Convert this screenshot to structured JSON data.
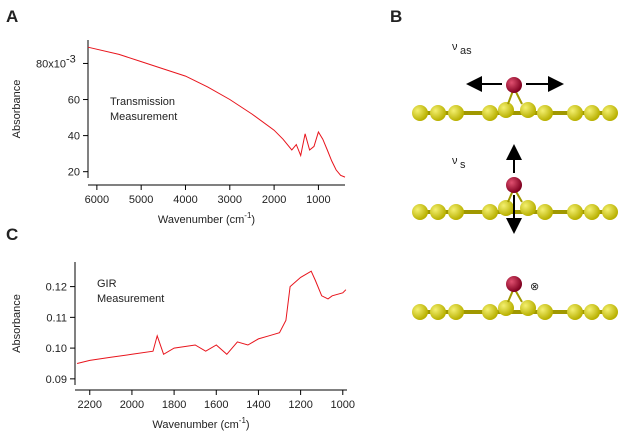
{
  "panel_labels": [
    "A",
    "B",
    "C"
  ],
  "diagram": {
    "modes": [
      {
        "symbol": "ν",
        "subscript": "as"
      },
      {
        "symbol": "ν",
        "subscript": "s"
      },
      {
        "symbol": "⊗"
      }
    ]
  },
  "chart_data": [
    {
      "type": "line",
      "ylabel": "Absorbance",
      "xlabel": {
        "text": "Wavenumber (cm",
        "sup": "-1",
        "end": ")"
      },
      "annotation": [
        "Transmission",
        "Measurement"
      ],
      "color": "#e8141c",
      "xlim": [
        6200,
        400
      ],
      "xticks": [
        6000,
        5000,
        4000,
        3000,
        2000,
        1000
      ],
      "ylim": [
        16.5,
        93
      ],
      "yticks": [
        20,
        40,
        60,
        {
          "value": 80,
          "label": "80x10"
        }
      ],
      "y_exponent": "-3",
      "x": [
        6200,
        5500,
        5000,
        4500,
        4000,
        3500,
        3000,
        2500,
        2000,
        1800,
        1600,
        1500,
        1400,
        1300,
        1200,
        1100,
        1000,
        900,
        800,
        700,
        600,
        500,
        400
      ],
      "values": [
        89,
        85,
        81,
        77,
        73,
        67,
        60,
        52,
        43,
        38,
        32,
        35,
        29,
        41,
        32,
        34,
        42,
        38,
        32,
        26,
        21,
        18,
        17
      ]
    },
    {
      "type": "line",
      "ylabel": "Absorbance",
      "xlabel": {
        "text": "Wavenumber (cm",
        "sup": "-1",
        "end": ")"
      },
      "annotation": [
        "GIR",
        "Measurement"
      ],
      "color": "#e8141c",
      "xlim": [
        2270,
        980
      ],
      "xticks": [
        2200,
        2000,
        1800,
        1600,
        1400,
        1200,
        1000
      ],
      "ylim": [
        0.088,
        0.128
      ],
      "yticks": [
        0.09,
        {
          "value": 0.1,
          "label": "0.10"
        },
        0.11,
        0.12
      ],
      "x": [
        2260,
        2200,
        2100,
        2000,
        1900,
        1880,
        1850,
        1800,
        1700,
        1650,
        1600,
        1550,
        1500,
        1450,
        1400,
        1350,
        1300,
        1270,
        1250,
        1200,
        1150,
        1130,
        1100,
        1070,
        1050,
        1000,
        985
      ],
      "values": [
        0.095,
        0.096,
        0.097,
        0.098,
        0.099,
        0.104,
        0.098,
        0.1,
        0.101,
        0.099,
        0.101,
        0.098,
        0.102,
        0.101,
        0.103,
        0.104,
        0.105,
        0.109,
        0.12,
        0.123,
        0.125,
        0.122,
        0.117,
        0.116,
        0.117,
        0.118,
        0.119
      ]
    }
  ]
}
